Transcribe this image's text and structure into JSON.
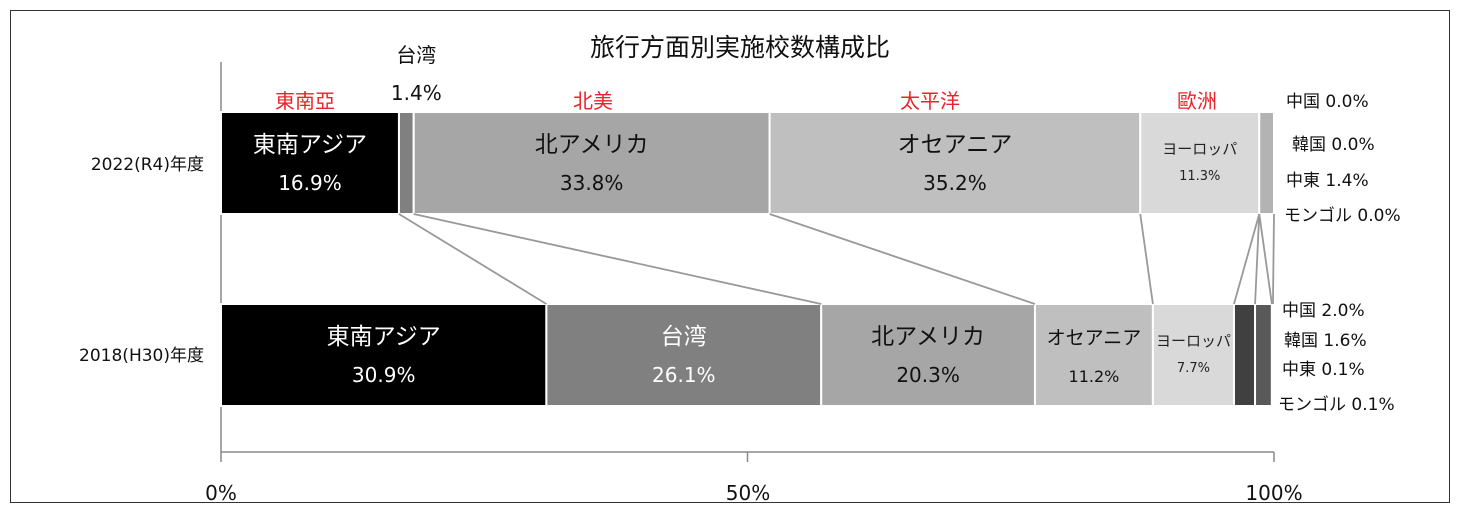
{
  "chart_data": {
    "type": "bar",
    "stacked": "100%",
    "orientation": "horizontal",
    "title": "旅行方面別実施校数構成比",
    "xlabel": "",
    "ylabel": "",
    "xlim": [
      0,
      100
    ],
    "x_ticks": [
      "0%",
      "50%",
      "100%"
    ],
    "grid": false,
    "categories": [
      "2022(R4)年度",
      "2018(H30)年度"
    ],
    "series": [
      {
        "name": "東南アジア",
        "color": "#000000",
        "text_color": "#ffffff",
        "values": [
          16.9,
          30.9
        ],
        "labels": [
          "16.9%",
          "30.9%"
        ]
      },
      {
        "name": "台湾",
        "color": "#808080",
        "text_color": "#ffffff",
        "values": [
          1.4,
          26.1
        ],
        "labels": [
          "1.4%",
          "26.1%"
        ]
      },
      {
        "name": "北アメリカ",
        "color": "#a6a6a6",
        "text_color": "#111111",
        "values": [
          33.8,
          20.3
        ],
        "labels": [
          "33.8%",
          "20.3%"
        ]
      },
      {
        "name": "オセアニア",
        "color": "#bfbfbf",
        "text_color": "#111111",
        "values": [
          35.2,
          11.2
        ],
        "labels": [
          "35.2%",
          "11.2%"
        ]
      },
      {
        "name": "ヨーロッパ",
        "color": "#d9d9d9",
        "text_color": "#222222",
        "values": [
          11.3,
          7.7
        ],
        "labels": [
          "11.3%",
          "7.7%"
        ]
      },
      {
        "name": "中国",
        "color": "#404040",
        "text_color": "#111111",
        "values": [
          0.0,
          2.0
        ],
        "labels": [
          "0.0%",
          "2.0%"
        ]
      },
      {
        "name": "韓国",
        "color": "#595959",
        "text_color": "#111111",
        "values": [
          0.0,
          1.6
        ],
        "labels": [
          "0.0%",
          "1.6%"
        ]
      },
      {
        "name": "中東",
        "color": "#b3b3b3",
        "text_color": "#111111",
        "values": [
          1.4,
          0.1
        ],
        "labels": [
          "1.4%",
          "0.1%"
        ]
      },
      {
        "name": "モンゴル",
        "color": "#d0d0d0",
        "text_color": "#111111",
        "values": [
          0.0,
          0.1
        ],
        "labels": [
          "0.0%",
          "0.1%"
        ]
      }
    ],
    "region_labels": [
      {
        "text": "東南亞",
        "color": "#e8232a"
      },
      {
        "text": "北美",
        "color": "#e8232a"
      },
      {
        "text": "太平洋",
        "color": "#e8232a"
      },
      {
        "text": "歐洲",
        "color": "#e8232a"
      }
    ]
  }
}
